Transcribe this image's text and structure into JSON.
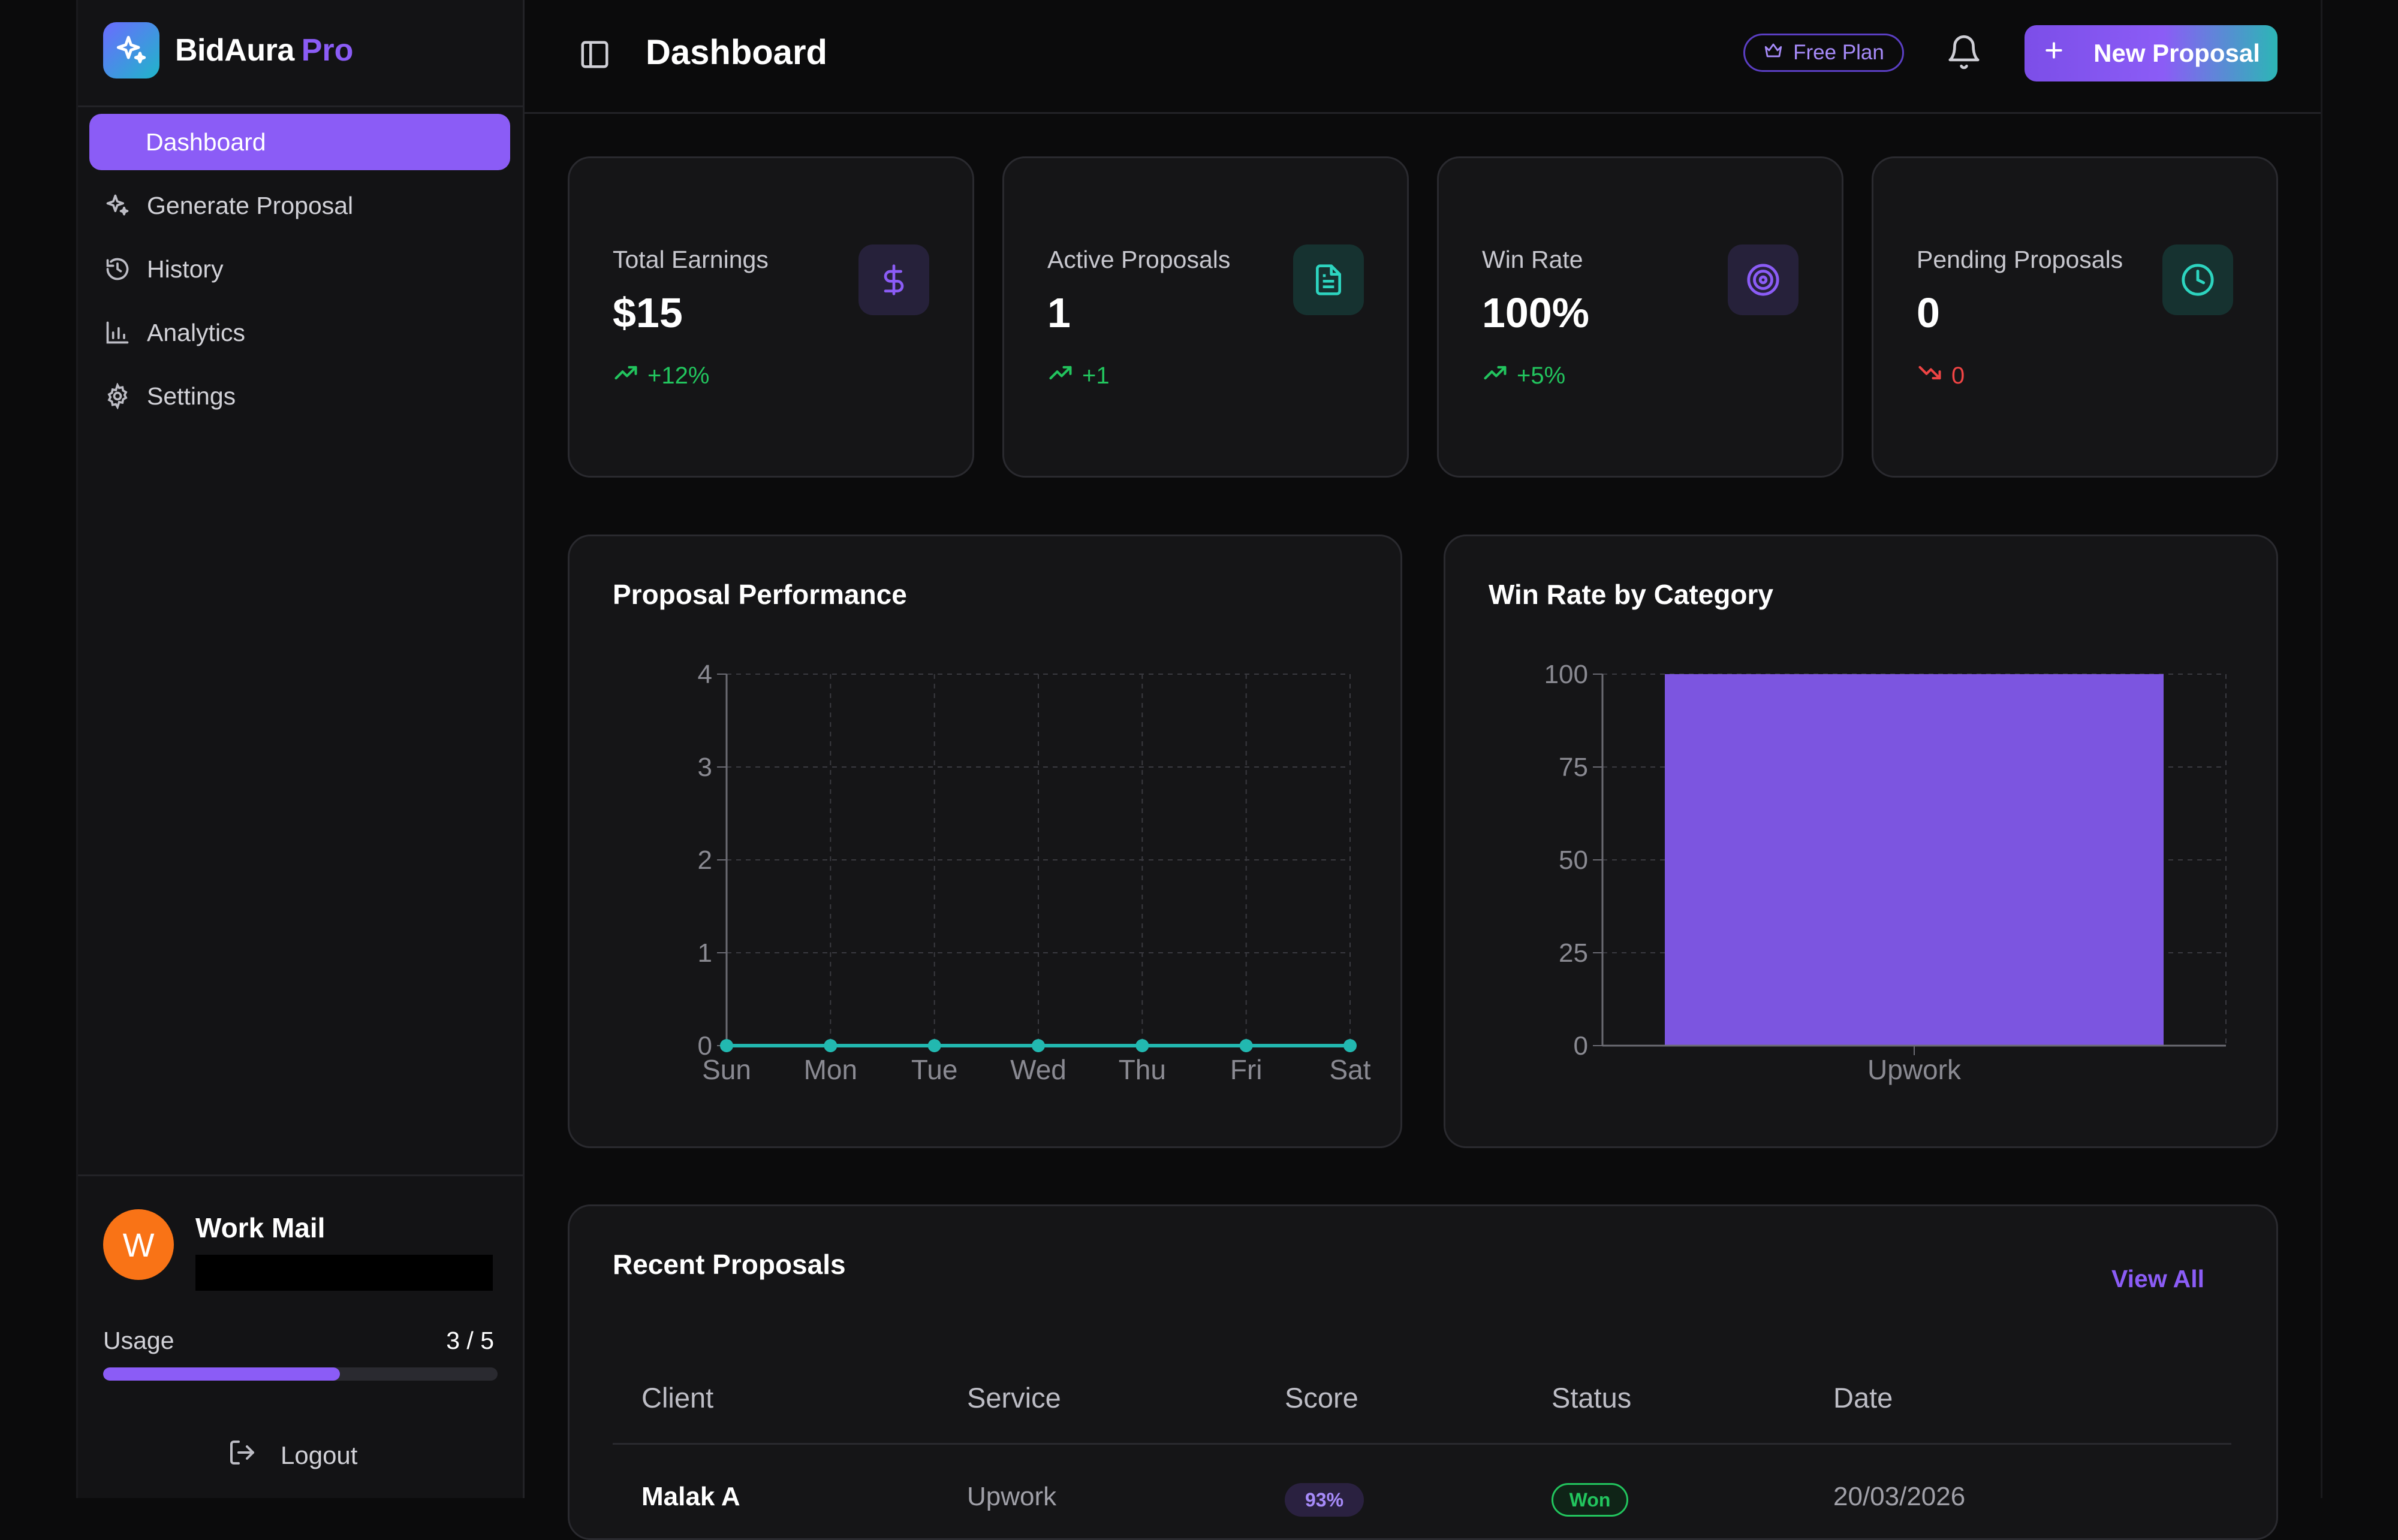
{
  "brand": {
    "name": "BidAura",
    "suffix": "Pro"
  },
  "nav": {
    "items": [
      {
        "label": "Dashboard",
        "icon": "dashboard-icon",
        "active": true
      },
      {
        "label": "Generate Proposal",
        "icon": "sparkles-icon"
      },
      {
        "label": "History",
        "icon": "history-icon"
      },
      {
        "label": "Analytics",
        "icon": "bar-chart-icon"
      },
      {
        "label": "Settings",
        "icon": "gear-icon"
      }
    ]
  },
  "user": {
    "initial": "W",
    "name": "Work Mail",
    "email": "",
    "usage_label": "Usage",
    "usage_count": "3 / 5",
    "usage_fraction": 0.6,
    "logout_label": "Logout"
  },
  "header": {
    "title": "Dashboard",
    "plan_badge": "Free Plan",
    "new_button": "New Proposal"
  },
  "stats": [
    {
      "label": "Total Earnings",
      "value": "$15",
      "change": "+12%",
      "trend": "up",
      "icon": "dollar-icon",
      "icon_color": "#8b5cf6"
    },
    {
      "label": "Active Proposals",
      "value": "1",
      "change": "+1",
      "trend": "up",
      "icon": "document-icon",
      "icon_color": "#2dd4bf"
    },
    {
      "label": "Win Rate",
      "value": "100%",
      "change": "+5%",
      "trend": "up",
      "icon": "target-icon",
      "icon_color": "#8b5cf6"
    },
    {
      "label": "Pending Proposals",
      "value": "0",
      "change": "0",
      "trend": "down",
      "icon": "clock-icon",
      "icon_color": "#2dd4bf"
    }
  ],
  "chart_data": [
    {
      "type": "line",
      "title": "Proposal Performance",
      "categories": [
        "Sun",
        "Mon",
        "Tue",
        "Wed",
        "Thu",
        "Fri",
        "Sat"
      ],
      "series": [
        {
          "values": [
            0,
            0,
            0,
            0,
            0,
            0,
            0
          ]
        }
      ],
      "yticks": [
        "0",
        "1",
        "2",
        "3",
        "4"
      ],
      "ylim": [
        0,
        4
      ],
      "grid": true,
      "color": "#22b8b0"
    },
    {
      "type": "bar",
      "title": "Win Rate by Category",
      "categories": [
        "Upwork"
      ],
      "values": [
        100
      ],
      "yticks": [
        "0",
        "25",
        "50",
        "75",
        "100"
      ],
      "ylim": [
        0,
        100
      ],
      "grid": true,
      "color": "#7c55e0"
    }
  ],
  "recent": {
    "title": "Recent Proposals",
    "view_all": "View All",
    "columns": [
      "Client",
      "Service",
      "Score",
      "Status",
      "Date"
    ],
    "rows": [
      {
        "client": "Malak A",
        "service": "Upwork",
        "score": "93%",
        "status": "Won",
        "date": "20/03/2026"
      }
    ]
  },
  "colors": {
    "accent": "#8b5cf6",
    "teal": "#2dd4bf",
    "up": "#22c55e",
    "down": "#ef4444"
  }
}
